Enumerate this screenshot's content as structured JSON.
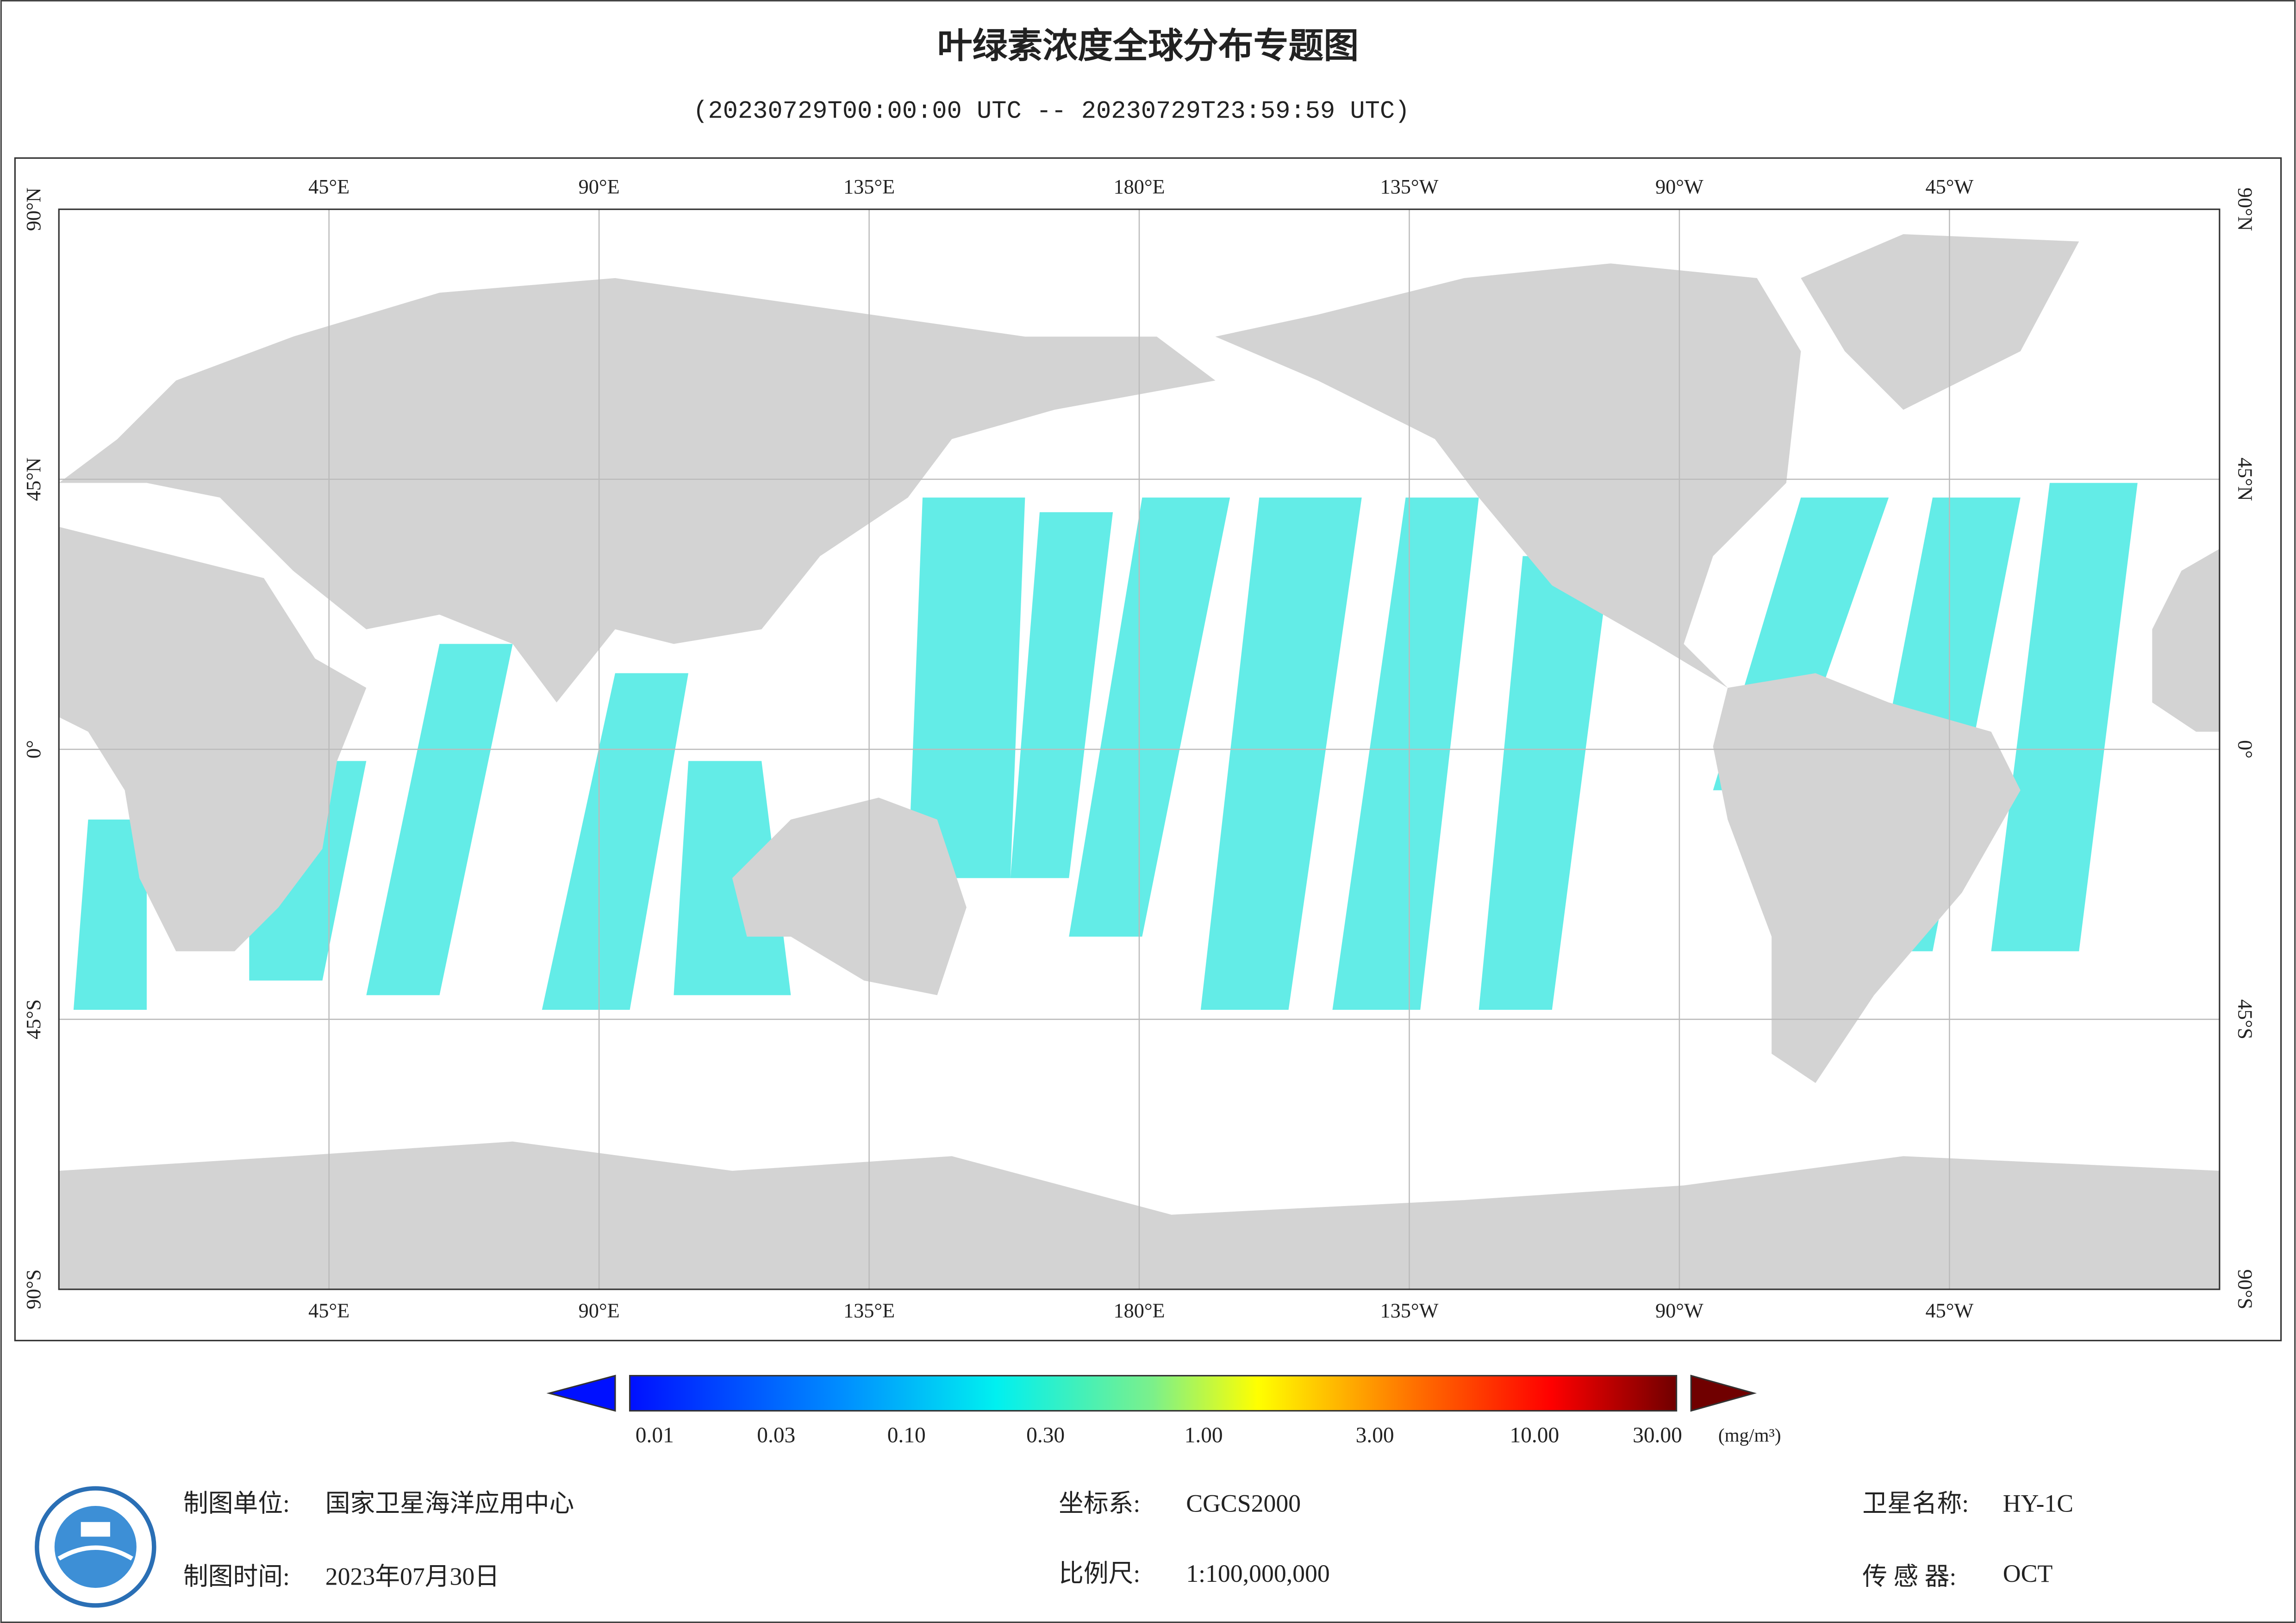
{
  "header": {
    "title": "叶绿素浓度全球分布专题图",
    "subtitle": "(20230729T00:00:00 UTC -- 20230729T23:59:59 UTC)"
  },
  "map": {
    "lon_labels": [
      "45°E",
      "90°E",
      "135°E",
      "180°E",
      "135°W",
      "90°W",
      "45°W"
    ],
    "lat_labels": [
      "90°N",
      "45°N",
      "0°",
      "45°S",
      "90°S"
    ]
  },
  "legend": {
    "ticks": [
      "0.01",
      "0.03",
      "0.10",
      "0.30",
      "1.00",
      "3.00",
      "10.00",
      "30.00"
    ],
    "unit": "(mg/m³)"
  },
  "footer": {
    "org_label": "制图单位:",
    "org": "国家卫星海洋应用中心",
    "crs_label": "坐标系:",
    "crs": "CGCS2000",
    "sat_label": "卫星名称:",
    "sat": "HY-1C",
    "date_label": "制图时间:",
    "date": "2023年07月30日",
    "scale_label": "比例尺:",
    "scale": "1:100,000,000",
    "sensor_label": "传 感 器:",
    "sensor": "OCT"
  }
}
